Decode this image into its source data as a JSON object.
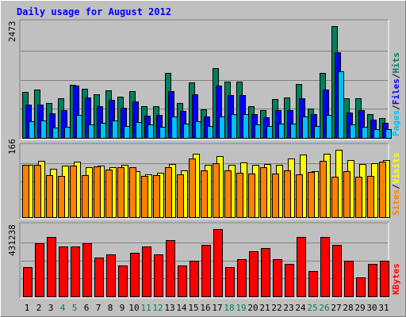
{
  "title": "Daily usage for August 2012",
  "colors": {
    "hits": "#00805C",
    "files": "#0000FF",
    "pages": "#00C0FF",
    "visits": "#FFFF00",
    "sites": "#FF8000",
    "kbytes": "#FF0000",
    "weekday": "#000000",
    "weekend": "#00805C"
  },
  "chart_data": [
    {
      "type": "bar",
      "ylabel_max": "2473",
      "legend": [
        "Pages",
        "Files",
        "Hits"
      ],
      "categories": [
        "1",
        "2",
        "3",
        "4",
        "5",
        "6",
        "7",
        "8",
        "9",
        "10",
        "11",
        "12",
        "13",
        "14",
        "15",
        "16",
        "17",
        "18",
        "19",
        "20",
        "21",
        "22",
        "23",
        "24",
        "25",
        "26",
        "27",
        "28",
        "29",
        "30",
        "31"
      ],
      "weekend_days": [
        "4",
        "5",
        "11",
        "12",
        "18",
        "19",
        "25",
        "26"
      ],
      "ylim": [
        0,
        2473
      ],
      "series": [
        {
          "name": "Hits",
          "values": [
            1010,
            1070,
            780,
            870,
            1170,
            1080,
            970,
            1060,
            920,
            1030,
            700,
            700,
            1440,
            780,
            1230,
            630,
            1540,
            1240,
            1240,
            700,
            620,
            860,
            900,
            1200,
            650,
            1430,
            2473,
            870,
            870,
            520,
            430
          ]
        },
        {
          "name": "Files",
          "values": [
            740,
            740,
            540,
            620,
            1150,
            890,
            700,
            850,
            660,
            810,
            490,
            500,
            1030,
            590,
            970,
            470,
            1160,
            950,
            950,
            520,
            450,
            620,
            610,
            880,
            520,
            1070,
            1900,
            560,
            620,
            410,
            340
          ]
        },
        {
          "name": "Pages",
          "values": [
            370,
            380,
            230,
            250,
            510,
            300,
            340,
            390,
            270,
            350,
            290,
            250,
            470,
            310,
            360,
            270,
            470,
            530,
            530,
            300,
            260,
            310,
            310,
            480,
            260,
            510,
            1470,
            300,
            240,
            190,
            190
          ]
        }
      ]
    },
    {
      "type": "bar",
      "ylabel_max": "166",
      "legend": [
        "Sites",
        "Visits"
      ],
      "categories": [
        "1",
        "2",
        "3",
        "4",
        "5",
        "6",
        "7",
        "8",
        "9",
        "10",
        "11",
        "12",
        "13",
        "14",
        "15",
        "16",
        "17",
        "18",
        "19",
        "20",
        "21",
        "22",
        "23",
        "24",
        "25",
        "26",
        "27",
        "28",
        "29",
        "30",
        "31"
      ],
      "ylim": [
        0,
        166
      ],
      "series": [
        {
          "name": "Visits",
          "values": [
            128,
            139,
            119,
            126,
            136,
            124,
            126,
            124,
            128,
            114,
            105,
            110,
            131,
            115,
            156,
            129,
            150,
            129,
            135,
            128,
            131,
            129,
            144,
            154,
            114,
            156,
            166,
            140,
            130,
            132,
            140
          ]
        },
        {
          "name": "Sites",
          "values": [
            128,
            129,
            103,
            101,
            126,
            103,
            125,
            118,
            124,
            124,
            101,
            103,
            124,
            105,
            145,
            115,
            132,
            116,
            110,
            107,
            123,
            107,
            116,
            106,
            112,
            139,
            100,
            113,
            100,
            102,
            136
          ]
        }
      ]
    },
    {
      "type": "bar",
      "ylabel_max": "431238",
      "legend": [
        "KBytes"
      ],
      "categories": [
        "1",
        "2",
        "3",
        "4",
        "5",
        "6",
        "7",
        "8",
        "9",
        "10",
        "11",
        "12",
        "13",
        "14",
        "15",
        "16",
        "17",
        "18",
        "19",
        "20",
        "21",
        "22",
        "23",
        "24",
        "25",
        "26",
        "27",
        "28",
        "29",
        "30",
        "31"
      ],
      "ylim": [
        0,
        431238
      ],
      "series": [
        {
          "name": "KBytes",
          "values": [
            190000,
            340000,
            380000,
            320000,
            320000,
            340000,
            250000,
            270000,
            200000,
            280000,
            320000,
            270000,
            360000,
            200000,
            230000,
            330000,
            431238,
            190000,
            240000,
            290000,
            310000,
            240000,
            210000,
            380000,
            160000,
            380000,
            330000,
            230000,
            120000,
            210000,
            230000
          ]
        }
      ]
    }
  ]
}
